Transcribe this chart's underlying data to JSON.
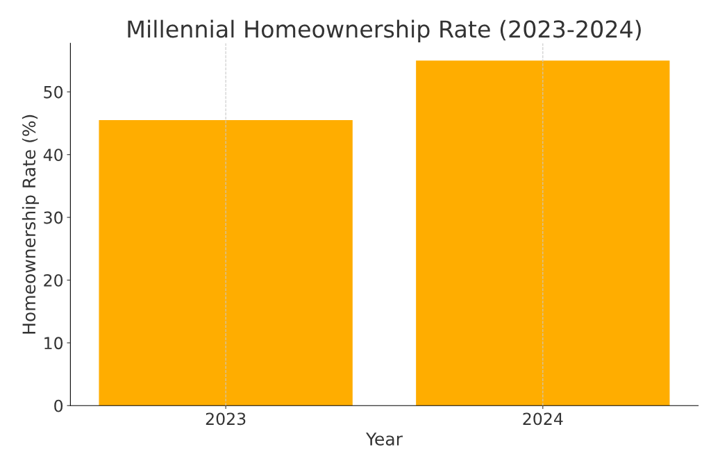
{
  "chart_data": {
    "type": "bar",
    "title": "Millennial Homeownership Rate (2023-2024)",
    "xlabel": "Year",
    "ylabel": "Homeownership Rate (%)",
    "categories": [
      "2023",
      "2024"
    ],
    "values": [
      45.5,
      55.0
    ],
    "color": "#ffad00",
    "ylim": [
      0,
      57.75
    ],
    "yticks": [
      0,
      10,
      20,
      30,
      40,
      50
    ],
    "grid": "x",
    "legend": false
  }
}
